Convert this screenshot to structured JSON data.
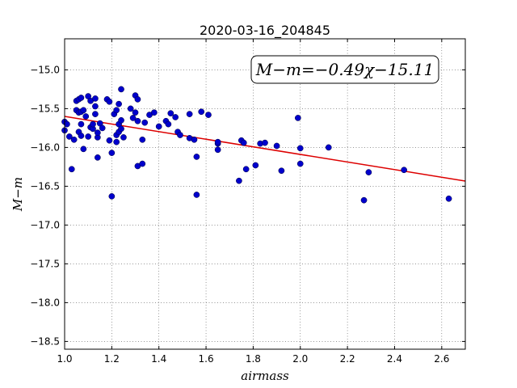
{
  "chart_data": {
    "type": "scatter",
    "title": "2020-03-16_204845",
    "xlabel": "airmass",
    "ylabel": "M−m",
    "xlim": [
      1.0,
      2.7
    ],
    "ylim": [
      -18.6,
      -14.6
    ],
    "xticks": [
      1.0,
      1.2,
      1.4,
      1.6,
      1.8,
      2.0,
      2.2,
      2.4,
      2.6
    ],
    "xtick_labels": [
      "1.0",
      "1.2",
      "1.4",
      "1.6",
      "1.8",
      "2.0",
      "2.2",
      "2.4",
      "2.6"
    ],
    "yticks": [
      -15.0,
      -15.5,
      -16.0,
      -16.5,
      -17.0,
      -17.5,
      -18.0,
      -18.5
    ],
    "ytick_labels": [
      "−15.0",
      "−15.5",
      "−16.0",
      "−16.5",
      "−17.0",
      "−17.5",
      "−18.0",
      "−18.5"
    ],
    "grid": true,
    "annotation": "M−m=−0.49χ−15.11",
    "marker_color": "#0000cc",
    "fit_color": "#dd0000",
    "fit_line": {
      "slope": -0.49,
      "intercept": -15.11
    },
    "points": [
      {
        "x": 1.0,
        "y": -15.67
      },
      {
        "x": 1.0,
        "y": -15.78
      },
      {
        "x": 1.01,
        "y": -15.7
      },
      {
        "x": 1.02,
        "y": -15.86
      },
      {
        "x": 1.03,
        "y": -16.28
      },
      {
        "x": 1.04,
        "y": -15.9
      },
      {
        "x": 1.05,
        "y": -15.52
      },
      {
        "x": 1.05,
        "y": -15.4
      },
      {
        "x": 1.06,
        "y": -15.8
      },
      {
        "x": 1.06,
        "y": -15.38
      },
      {
        "x": 1.06,
        "y": -15.55
      },
      {
        "x": 1.07,
        "y": -15.36
      },
      {
        "x": 1.07,
        "y": -15.54
      },
      {
        "x": 1.07,
        "y": -15.85
      },
      {
        "x": 1.07,
        "y": -15.7
      },
      {
        "x": 1.08,
        "y": -16.02
      },
      {
        "x": 1.08,
        "y": -15.52
      },
      {
        "x": 1.09,
        "y": -15.6
      },
      {
        "x": 1.1,
        "y": -15.86
      },
      {
        "x": 1.1,
        "y": -15.34
      },
      {
        "x": 1.11,
        "y": -15.4
      },
      {
        "x": 1.11,
        "y": -15.74
      },
      {
        "x": 1.12,
        "y": -15.76
      },
      {
        "x": 1.12,
        "y": -15.7
      },
      {
        "x": 1.13,
        "y": -15.47
      },
      {
        "x": 1.13,
        "y": -15.37
      },
      {
        "x": 1.13,
        "y": -15.57
      },
      {
        "x": 1.14,
        "y": -15.87
      },
      {
        "x": 1.14,
        "y": -15.81
      },
      {
        "x": 1.14,
        "y": -16.13
      },
      {
        "x": 1.15,
        "y": -15.69
      },
      {
        "x": 1.16,
        "y": -15.75
      },
      {
        "x": 1.18,
        "y": -15.38
      },
      {
        "x": 1.19,
        "y": -15.91
      },
      {
        "x": 1.19,
        "y": -15.41
      },
      {
        "x": 1.2,
        "y": -16.63
      },
      {
        "x": 1.2,
        "y": -16.07
      },
      {
        "x": 1.21,
        "y": -15.57
      },
      {
        "x": 1.22,
        "y": -15.52
      },
      {
        "x": 1.22,
        "y": -15.84
      },
      {
        "x": 1.22,
        "y": -15.93
      },
      {
        "x": 1.23,
        "y": -15.7
      },
      {
        "x": 1.23,
        "y": -15.8
      },
      {
        "x": 1.23,
        "y": -15.44
      },
      {
        "x": 1.24,
        "y": -15.76
      },
      {
        "x": 1.24,
        "y": -15.25
      },
      {
        "x": 1.24,
        "y": -15.65
      },
      {
        "x": 1.25,
        "y": -15.87
      },
      {
        "x": 1.28,
        "y": -15.5
      },
      {
        "x": 1.29,
        "y": -15.62
      },
      {
        "x": 1.3,
        "y": -15.33
      },
      {
        "x": 1.3,
        "y": -15.55
      },
      {
        "x": 1.31,
        "y": -15.38
      },
      {
        "x": 1.31,
        "y": -15.66
      },
      {
        "x": 1.31,
        "y": -16.24
      },
      {
        "x": 1.33,
        "y": -16.21
      },
      {
        "x": 1.33,
        "y": -15.9
      },
      {
        "x": 1.34,
        "y": -15.68
      },
      {
        "x": 1.36,
        "y": -15.58
      },
      {
        "x": 1.38,
        "y": -15.55
      },
      {
        "x": 1.4,
        "y": -15.73
      },
      {
        "x": 1.43,
        "y": -15.66
      },
      {
        "x": 1.44,
        "y": -15.7
      },
      {
        "x": 1.45,
        "y": -15.56
      },
      {
        "x": 1.47,
        "y": -15.61
      },
      {
        "x": 1.48,
        "y": -15.8
      },
      {
        "x": 1.49,
        "y": -15.84
      },
      {
        "x": 1.53,
        "y": -15.57
      },
      {
        "x": 1.53,
        "y": -15.88
      },
      {
        "x": 1.55,
        "y": -15.9
      },
      {
        "x": 1.56,
        "y": -16.12
      },
      {
        "x": 1.56,
        "y": -16.61
      },
      {
        "x": 1.58,
        "y": -15.54
      },
      {
        "x": 1.61,
        "y": -15.58
      },
      {
        "x": 1.65,
        "y": -15.95
      },
      {
        "x": 1.65,
        "y": -16.03
      },
      {
        "x": 1.65,
        "y": -15.93
      },
      {
        "x": 1.74,
        "y": -16.43
      },
      {
        "x": 1.75,
        "y": -15.91
      },
      {
        "x": 1.76,
        "y": -15.94
      },
      {
        "x": 1.77,
        "y": -16.28
      },
      {
        "x": 1.81,
        "y": -16.23
      },
      {
        "x": 1.83,
        "y": -15.95
      },
      {
        "x": 1.85,
        "y": -15.94
      },
      {
        "x": 1.9,
        "y": -15.98
      },
      {
        "x": 1.92,
        "y": -16.3
      },
      {
        "x": 1.99,
        "y": -15.62
      },
      {
        "x": 2.0,
        "y": -16.01
      },
      {
        "x": 2.0,
        "y": -16.21
      },
      {
        "x": 2.12,
        "y": -16.0
      },
      {
        "x": 2.27,
        "y": -16.68
      },
      {
        "x": 2.29,
        "y": -16.32
      },
      {
        "x": 2.44,
        "y": -16.29
      },
      {
        "x": 2.63,
        "y": -16.66
      }
    ]
  }
}
